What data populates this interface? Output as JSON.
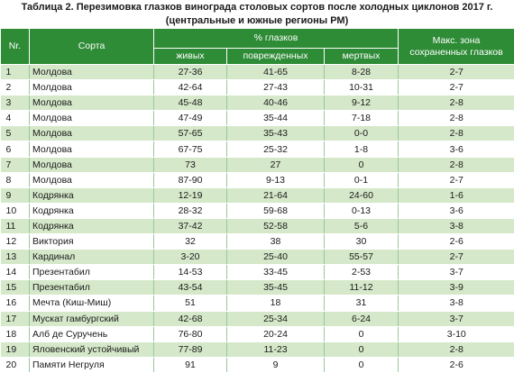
{
  "title_line1": "Таблица 2. Перезимовка глазков винограда столовых сортов после холодных циклонов 2017 г.",
  "title_line2": "(центральные и южные регионы РМ)",
  "headers": {
    "nr": "Nr.",
    "variety": "Сорта",
    "percent_buds": "% глазков",
    "alive": "живых",
    "damaged": "поврежденных",
    "dead": "мертвых",
    "max_zone_line1": "Макс. зона",
    "max_zone_line2": "сохраненных глазков"
  },
  "rows": [
    {
      "nr": "1",
      "variety": "Молдова",
      "alive": "27-36",
      "damaged": "41-65",
      "dead": "8-28",
      "zone": "2-7"
    },
    {
      "nr": "2",
      "variety": "Молдова",
      "alive": "42-64",
      "damaged": "27-43",
      "dead": "10-31",
      "zone": "2-7"
    },
    {
      "nr": "3",
      "variety": "Молдова",
      "alive": "45-48",
      "damaged": "40-46",
      "dead": "9-12",
      "zone": "2-8"
    },
    {
      "nr": "4",
      "variety": "Молдова",
      "alive": "47-49",
      "damaged": "35-44",
      "dead": "7-18",
      "zone": "2-8"
    },
    {
      "nr": "5",
      "variety": "Молдова",
      "alive": "57-65",
      "damaged": "35-43",
      "dead": "0-0",
      "zone": "2-8"
    },
    {
      "nr": "6",
      "variety": "Молдова",
      "alive": "67-75",
      "damaged": "25-32",
      "dead": "1-8",
      "zone": "3-6"
    },
    {
      "nr": "7",
      "variety": "Молдова",
      "alive": "73",
      "damaged": "27",
      "dead": "0",
      "zone": "2-8"
    },
    {
      "nr": "8",
      "variety": "Молдова",
      "alive": "87-90",
      "damaged": "9-13",
      "dead": "0-1",
      "zone": "2-7"
    },
    {
      "nr": "9",
      "variety": "Кодрянка",
      "alive": "12-19",
      "damaged": "21-64",
      "dead": "24-60",
      "zone": "1-6"
    },
    {
      "nr": "10",
      "variety": "Кодрянка",
      "alive": "28-32",
      "damaged": "59-68",
      "dead": "0-13",
      "zone": "3-6"
    },
    {
      "nr": "11",
      "variety": "Кодрянка",
      "alive": "37-42",
      "damaged": "52-58",
      "dead": "5-6",
      "zone": "3-8"
    },
    {
      "nr": "12",
      "variety": "Виктория",
      "alive": "32",
      "damaged": "38",
      "dead": "30",
      "zone": "2-6"
    },
    {
      "nr": "13",
      "variety": "Кардинал",
      "alive": "3-20",
      "damaged": "25-40",
      "dead": "55-57",
      "zone": "2-7"
    },
    {
      "nr": "14",
      "variety": "Презентабил",
      "alive": "14-53",
      "damaged": "33-45",
      "dead": "2-53",
      "zone": "3-7"
    },
    {
      "nr": "15",
      "variety": "Презентабил",
      "alive": "43-54",
      "damaged": "35-45",
      "dead": "11-12",
      "zone": "3-9"
    },
    {
      "nr": "16",
      "variety": "Мечта (Киш-Миш)",
      "alive": "51",
      "damaged": "18",
      "dead": "31",
      "zone": "3-8"
    },
    {
      "nr": "17",
      "variety": "Мускат гамбургский",
      "alive": "42-68",
      "damaged": "25-34",
      "dead": "6-24",
      "zone": "3-7"
    },
    {
      "nr": "18",
      "variety": "Алб де Суручень",
      "alive": "76-80",
      "damaged": "20-24",
      "dead": "0",
      "zone": "3-10"
    },
    {
      "nr": "19",
      "variety": "Яловенский устойчивый",
      "alive": "77-89",
      "damaged": "11-23",
      "dead": "0",
      "zone": "2-8"
    },
    {
      "nr": "20",
      "variety": "Памяти Негруля",
      "alive": "91",
      "damaged": "9",
      "dead": "0",
      "zone": "2-6"
    }
  ],
  "colors": {
    "header_green": "#2e8b36",
    "row_green": "#d5e8c9",
    "row_white": "#ffffff"
  }
}
